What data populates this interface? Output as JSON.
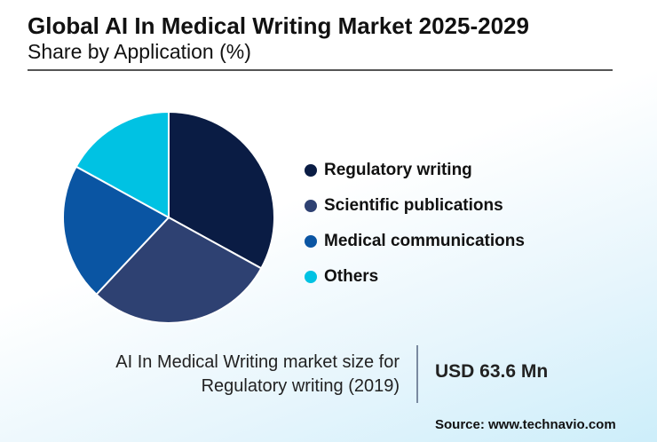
{
  "header": {
    "title": "Global AI In Medical Writing Market 2025-2029",
    "subtitle": "Share by Application (%)"
  },
  "chart_data": {
    "type": "pie",
    "title": "Global AI In Medical Writing Market 2025-2029",
    "subtitle": "Share by Application (%)",
    "categories": [
      "Regulatory writing",
      "Scientific publications",
      "Medical communications",
      "Others"
    ],
    "values": [
      33,
      29,
      21,
      17
    ],
    "colors": [
      "#0a1c44",
      "#2e4172",
      "#0a55a3",
      "#00c2e3"
    ],
    "start_angle": "12 o'clock",
    "direction": "clockwise",
    "legend_position": "right"
  },
  "stat": {
    "label_line1": "AI In Medical Writing market size for",
    "label_line2": "Regulatory writing (2019)",
    "value": "USD 63.6 Mn"
  },
  "source": "Source: www.technavio.com"
}
